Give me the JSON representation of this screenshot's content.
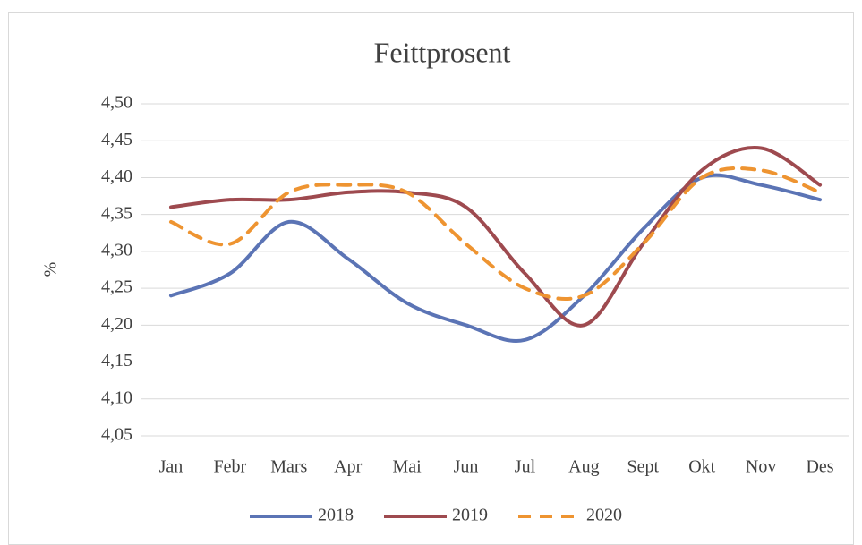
{
  "chart_data": {
    "type": "line",
    "title": "Feittprosent",
    "y_label": "%",
    "categories": [
      "Jan",
      "Febr",
      "Mars",
      "Apr",
      "Mai",
      "Jun",
      "Jul",
      "Aug",
      "Sept",
      "Okt",
      "Nov",
      "Des"
    ],
    "series": [
      {
        "name": "2018",
        "color": "#5b74b5",
        "dashed": false,
        "values": [
          4.24,
          4.27,
          4.34,
          4.29,
          4.23,
          4.2,
          4.18,
          4.24,
          4.33,
          4.4,
          4.39,
          4.37
        ]
      },
      {
        "name": "2019",
        "color": "#9e4a4f",
        "dashed": false,
        "values": [
          4.36,
          4.37,
          4.37,
          4.38,
          4.38,
          4.36,
          4.27,
          4.2,
          4.31,
          4.41,
          4.44,
          4.39
        ]
      },
      {
        "name": "2020",
        "color": "#ee9431",
        "dashed": true,
        "values": [
          4.34,
          4.31,
          4.38,
          4.39,
          4.38,
          4.31,
          4.25,
          4.24,
          4.31,
          4.4,
          4.41,
          4.38
        ]
      }
    ],
    "ylim": [
      4.05,
      4.5
    ],
    "yticks": [
      {
        "value": 4.05,
        "label": "4,05"
      },
      {
        "value": 4.1,
        "label": "4,10"
      },
      {
        "value": 4.15,
        "label": "4,15"
      },
      {
        "value": 4.2,
        "label": "4,20"
      },
      {
        "value": 4.25,
        "label": "4,25"
      },
      {
        "value": 4.3,
        "label": "4,30"
      },
      {
        "value": 4.35,
        "label": "4,35"
      },
      {
        "value": 4.4,
        "label": "4,40"
      },
      {
        "value": 4.45,
        "label": "4,45"
      },
      {
        "value": 4.5,
        "label": "4,50"
      }
    ],
    "grid": true,
    "smooth": true,
    "legend": "bottom"
  }
}
